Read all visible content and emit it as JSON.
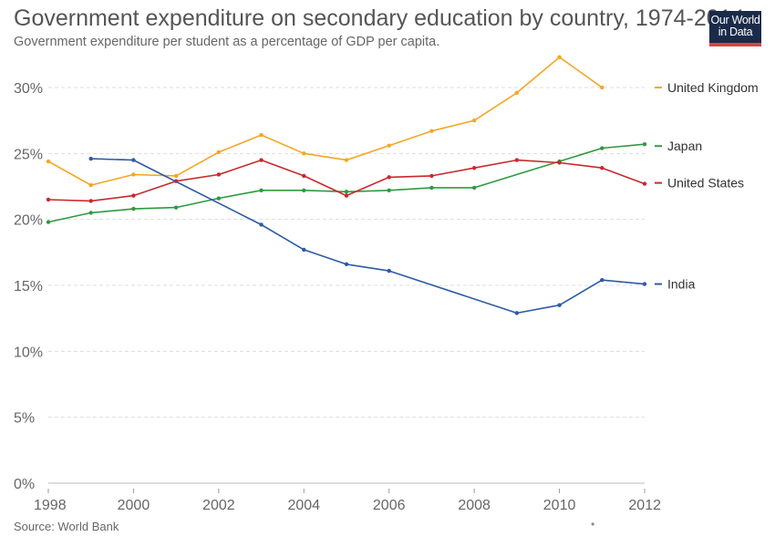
{
  "header": {
    "title": "Government expenditure on secondary education by country, 1974-2014",
    "subtitle": "Government expenditure per student as a percentage of GDP per capita."
  },
  "logo": {
    "line1": "Our World",
    "line2": "in Data"
  },
  "footer": {
    "source": "Source: World Bank",
    "mark": "•"
  },
  "chart_data": {
    "type": "line",
    "xlim": [
      1998,
      2012
    ],
    "ylim": [
      0,
      30
    ],
    "x_ticks": [
      1998,
      2000,
      2002,
      2004,
      2006,
      2008,
      2010,
      2012
    ],
    "y_ticks": [
      0,
      5,
      10,
      15,
      20,
      25,
      30
    ],
    "y_tick_labels": [
      "0%",
      "5%",
      "10%",
      "15%",
      "20%",
      "25%",
      "30%"
    ],
    "grid": "horizontal dashed",
    "legend_placement": "right (labels at line ends)",
    "series": [
      {
        "name": "United Kingdom",
        "color": "#f5a623",
        "points": [
          [
            1998,
            24.4
          ],
          [
            1999,
            22.6
          ],
          [
            2000,
            23.4
          ],
          [
            2001,
            23.3
          ],
          [
            2002,
            25.1
          ],
          [
            2003,
            26.4
          ],
          [
            2004,
            25.0
          ],
          [
            2005,
            24.5
          ],
          [
            2006,
            25.6
          ],
          [
            2007,
            26.7
          ],
          [
            2008,
            27.5
          ],
          [
            2009,
            29.6
          ],
          [
            2010,
            32.3
          ],
          [
            2011,
            30.0
          ]
        ]
      },
      {
        "name": "Japan",
        "color": "#2e9a3e",
        "points": [
          [
            1998,
            19.8
          ],
          [
            1999,
            20.5
          ],
          [
            2000,
            20.8
          ],
          [
            2001,
            20.9
          ],
          [
            2002,
            21.6
          ],
          [
            2003,
            22.2
          ],
          [
            2004,
            22.2
          ],
          [
            2005,
            22.1
          ],
          [
            2006,
            22.2
          ],
          [
            2007,
            22.4
          ],
          [
            2008,
            22.4
          ],
          [
            2010,
            24.4
          ],
          [
            2011,
            25.4
          ],
          [
            2012,
            25.7
          ]
        ]
      },
      {
        "name": "United States",
        "color": "#c9282d",
        "points": [
          [
            1998,
            21.5
          ],
          [
            1999,
            21.4
          ],
          [
            2000,
            21.8
          ],
          [
            2001,
            22.9
          ],
          [
            2002,
            23.4
          ],
          [
            2003,
            24.5
          ],
          [
            2004,
            23.3
          ],
          [
            2005,
            21.8
          ],
          [
            2006,
            23.2
          ],
          [
            2007,
            23.3
          ],
          [
            2008,
            23.9
          ],
          [
            2009,
            24.5
          ],
          [
            2010,
            24.3
          ],
          [
            2011,
            23.9
          ],
          [
            2012,
            22.7
          ]
        ]
      },
      {
        "name": "India",
        "color": "#2c5aa6",
        "points": [
          [
            1999,
            24.6
          ],
          [
            2000,
            24.5
          ],
          [
            2003,
            19.6
          ],
          [
            2004,
            17.7
          ],
          [
            2005,
            16.6
          ],
          [
            2006,
            16.1
          ],
          [
            2009,
            12.9
          ],
          [
            2010,
            13.5
          ],
          [
            2011,
            15.4
          ],
          [
            2012,
            15.1
          ]
        ]
      }
    ]
  }
}
